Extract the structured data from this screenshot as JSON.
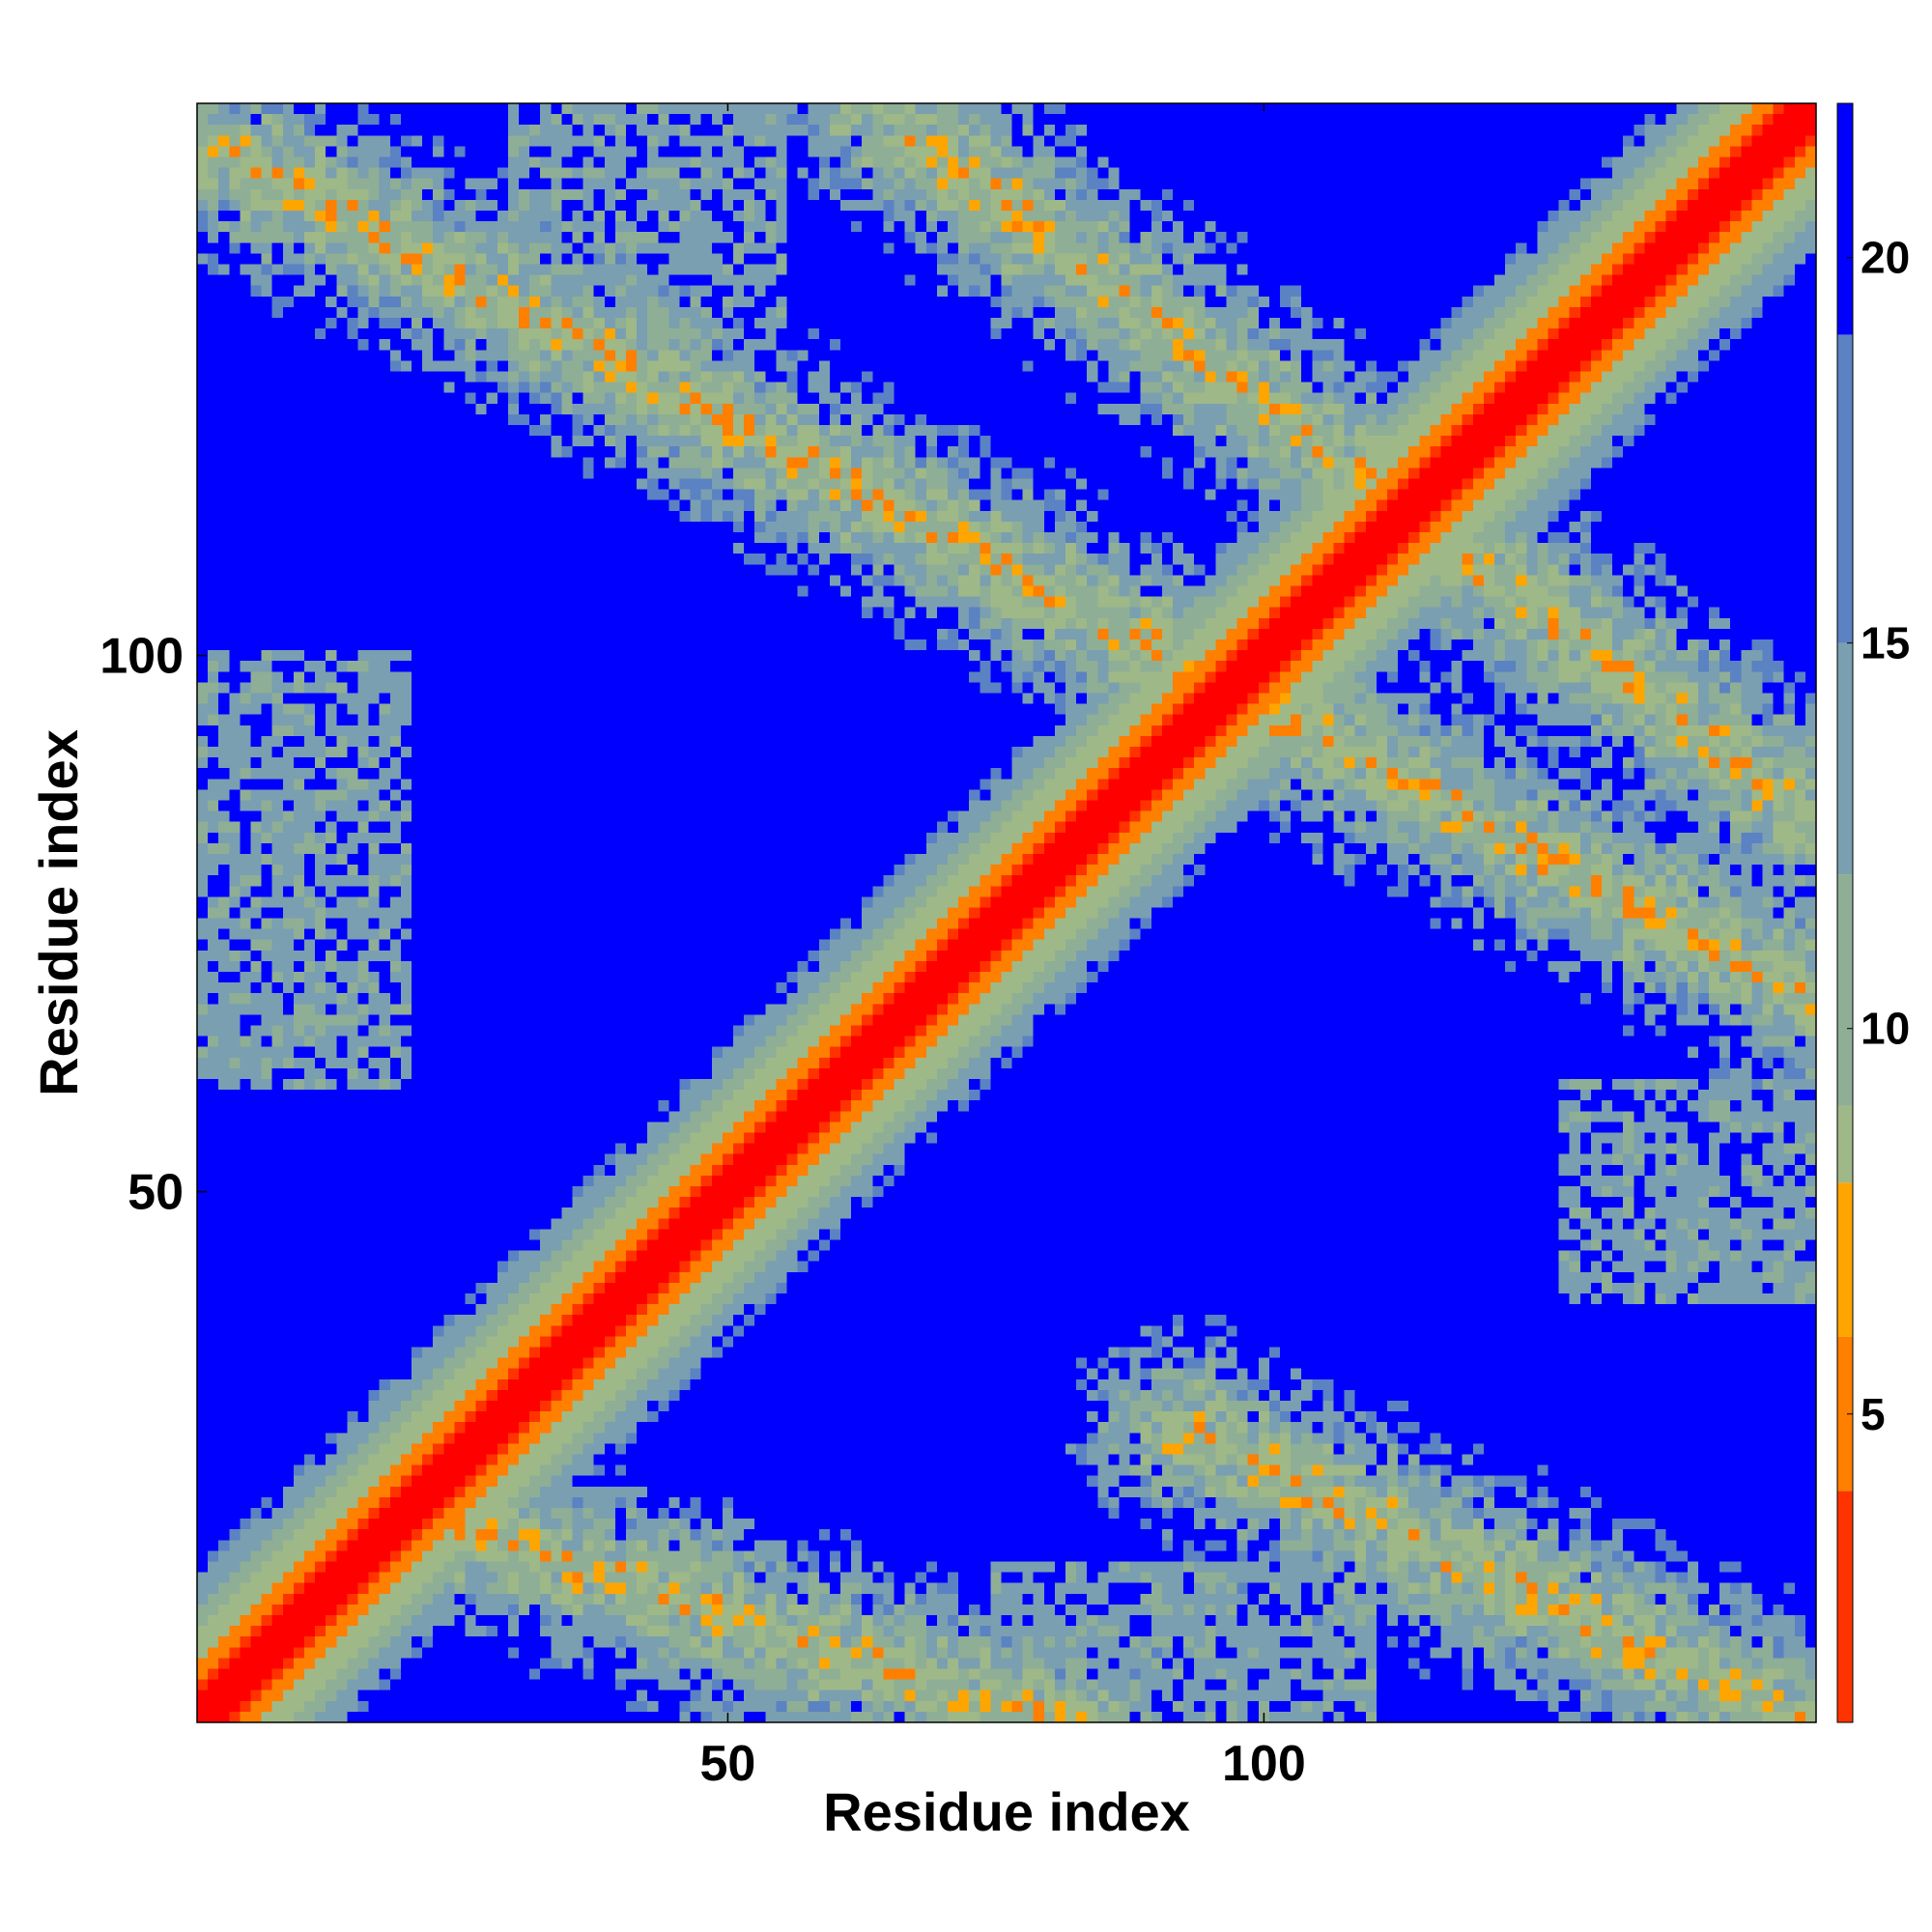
{
  "chart_data": {
    "type": "heatmap",
    "title": "",
    "xlabel": "Residue index",
    "ylabel": "Residue index",
    "n_residues": 151,
    "xlim": [
      1,
      151
    ],
    "ylim": [
      1,
      151
    ],
    "x_ticks": [
      50,
      100
    ],
    "y_ticks": [
      50,
      100
    ],
    "colorbar": {
      "range": [
        1,
        22
      ],
      "ticks": [
        5,
        10,
        15,
        20
      ],
      "color_stops": [
        {
          "value": 1,
          "color": "#ff0000"
        },
        {
          "value": 4,
          "color": "#ff3300"
        },
        {
          "value": 6,
          "color": "#ff7f00"
        },
        {
          "value": 8,
          "color": "#ffa500"
        },
        {
          "value": 9,
          "color": "#9fb888"
        },
        {
          "value": 12,
          "color": "#8fae96"
        },
        {
          "value": 15,
          "color": "#7a9fb0"
        },
        {
          "value": 19,
          "color": "#5b82c2"
        },
        {
          "value": 21,
          "color": "#0000ff"
        }
      ]
    },
    "value_meaning": "pairwise distance matrix (symmetric); diagonal minimum, large distances saturate at top of scale",
    "bands": [
      {
        "kind": "main-diagonal",
        "from": [
          1,
          1
        ],
        "to": [
          151,
          151
        ],
        "value": 1
      },
      {
        "kind": "anti-diagonal",
        "from": [
          1,
          148
        ],
        "to": [
          151,
          68
        ],
        "value": 11
      },
      {
        "kind": "anti-diagonal",
        "from": [
          64,
          151
        ],
        "to": [
          151,
          85
        ],
        "value": 11
      },
      {
        "kind": "anti-diagonal",
        "from": [
          20,
          20
        ],
        "to": [
          82,
          0
        ],
        "value": 11
      },
      {
        "kind": "anti-diagonal",
        "from": [
          92,
          28
        ],
        "to": [
          151,
          0
        ],
        "value": 11
      },
      {
        "kind": "block",
        "x": [
          1,
          20
        ],
        "y": [
          60,
          100
        ],
        "value": 16
      },
      {
        "kind": "block",
        "x": [
          30,
          55
        ],
        "y": [
          130,
          151
        ],
        "value": 15
      },
      {
        "kind": "block",
        "x": [
          75,
          110
        ],
        "y": [
          1,
          15
        ],
        "value": 16
      },
      {
        "kind": "block",
        "x": [
          128,
          151
        ],
        "y": [
          40,
          60
        ],
        "value": 15
      }
    ]
  }
}
